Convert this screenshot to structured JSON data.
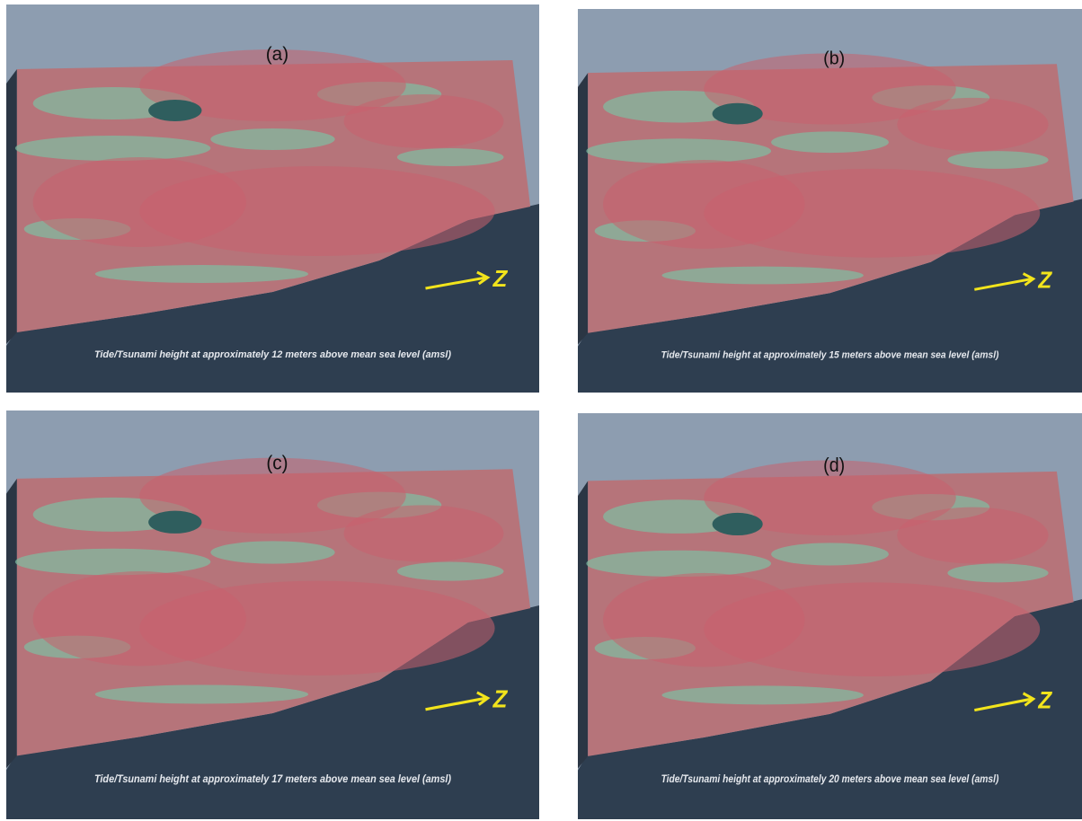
{
  "panels": [
    {
      "label": "(a)",
      "caption": "Tide/Tsunami height at  approximately 12 meters above mean sea level  (amsl)",
      "north": "Z"
    },
    {
      "label": "(b)",
      "caption": "Tide/Tsunami height at   approximately 15 meters above mean sea level (amsl)",
      "north": "Z"
    },
    {
      "label": "(c)",
      "caption": "Tide/Tsunami height at  approximately 17 meters above mean sea level  (amsl)",
      "north": "Z"
    },
    {
      "label": "(d)",
      "caption": "Tide/Tsunami height at   approximately 20 meters above mean sea level (amsl)",
      "north": "Z"
    }
  ]
}
